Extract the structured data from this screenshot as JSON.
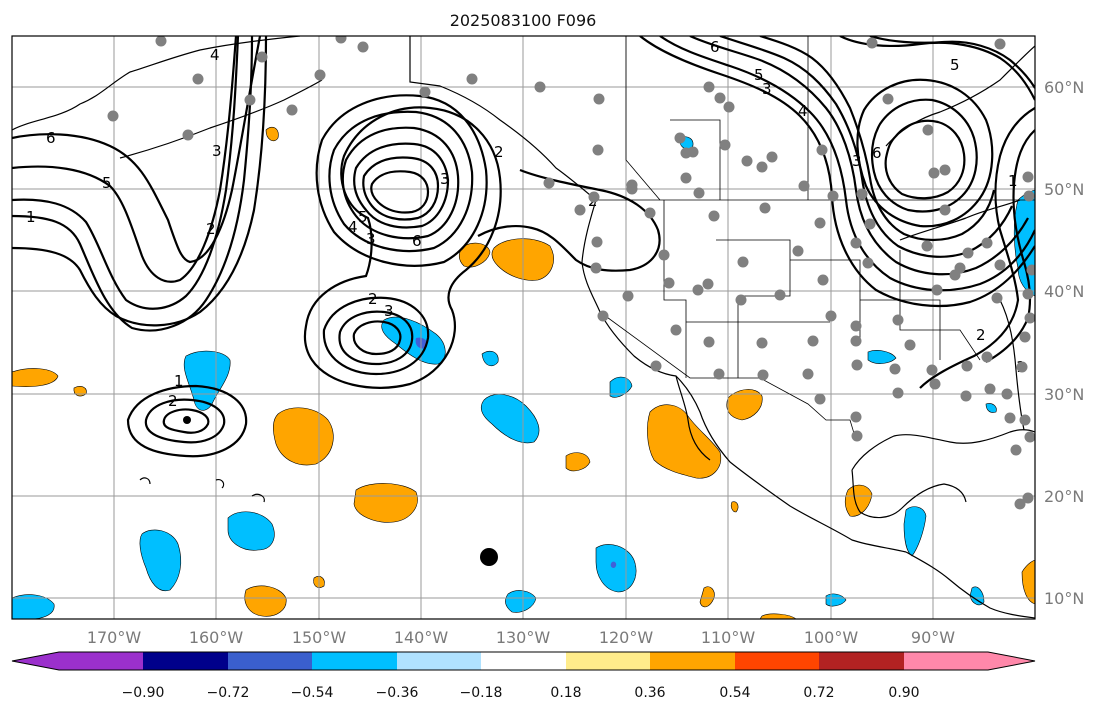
{
  "title": "2025083100 F096",
  "lat_labels": [
    "60°N",
    "50°N",
    "40°N",
    "30°N",
    "20°N",
    "10°N"
  ],
  "lon_labels": [
    "170°W",
    "160°W",
    "150°W",
    "140°W",
    "130°W",
    "120°W",
    "110°W",
    "100°W",
    "90°W"
  ],
  "colorbar": {
    "ticks": [
      "−0.90",
      "−0.72",
      "−0.54",
      "−0.36",
      "−0.18",
      "0.18",
      "0.36",
      "0.54",
      "0.72",
      "0.90"
    ],
    "colors": [
      "#9b30cc",
      "#00008b",
      "#3a5fcd",
      "#00bfff",
      "#b0e2ff",
      "#ffffff",
      "#ffec8b",
      "#ffa500",
      "#ff4500",
      "#b22222",
      "#ff88aa"
    ]
  },
  "map": {
    "lon_range": [
      -180,
      -80
    ],
    "lat_range": [
      8,
      65
    ],
    "station_color": "#808080",
    "marker_color": "#000000",
    "contour_labels": [
      "6",
      "5",
      "1",
      "2",
      "3",
      "4",
      "2",
      "3",
      "6",
      "5",
      "4",
      "3",
      "2",
      "3",
      "1",
      "2",
      "2",
      "3",
      "6",
      "5",
      "4",
      "3",
      "6",
      "5",
      "1",
      "1",
      "2"
    ]
  }
}
